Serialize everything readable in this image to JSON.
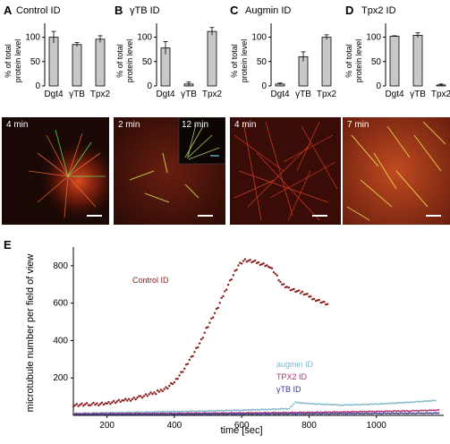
{
  "panels": [
    {
      "letter": "A",
      "title": "Control ID",
      "time": "4 min",
      "inset_time": ""
    },
    {
      "letter": "B",
      "title": "γTB ID",
      "time": "2 min",
      "inset_time": "12 min"
    },
    {
      "letter": "C",
      "title": "Augmin ID",
      "time": "4 min",
      "inset_time": ""
    },
    {
      "letter": "D",
      "title": "Tpx2 ID",
      "time": "7 min",
      "inset_time": ""
    }
  ],
  "panel_e_letter": "E",
  "colors": {
    "bar": "#c8c8c8",
    "control": "#8b1a1a",
    "augmin": "#7fb8c8",
    "tpx2": "#b0307a",
    "gtb": "#3a3a8a"
  },
  "chart_data": [
    {
      "type": "bar",
      "ylabel": "% of total protein level",
      "yticks": [
        0,
        50,
        100
      ],
      "ylim": [
        0,
        125
      ],
      "categories": [
        "Dgt4",
        "γTB",
        "Tpx2"
      ],
      "values": [
        100,
        85,
        96
      ],
      "errors": [
        12,
        4,
        7
      ]
    },
    {
      "type": "bar",
      "ylabel": "% of total protein level",
      "yticks": [
        0,
        50,
        100
      ],
      "ylim": [
        0,
        125
      ],
      "categories": [
        "Dgt4",
        "γTB",
        "Tpx2"
      ],
      "values": [
        78,
        4,
        112
      ],
      "errors": [
        13,
        4,
        8
      ]
    },
    {
      "type": "bar",
      "ylabel": "% of total protein level",
      "yticks": [
        0,
        50,
        100
      ],
      "ylim": [
        0,
        125
      ],
      "categories": [
        "Dgt4",
        "γTB",
        "Tpx2"
      ],
      "values": [
        4,
        60,
        100
      ],
      "errors": [
        2,
        10,
        5
      ]
    },
    {
      "type": "bar",
      "ylabel": "% of total protein level",
      "yticks": [
        0,
        50,
        100
      ],
      "ylim": [
        0,
        125
      ],
      "categories": [
        "Dgt4",
        "γTB",
        "Tpx2"
      ],
      "values": [
        102,
        104,
        2
      ],
      "errors": [
        1,
        5,
        2
      ]
    },
    {
      "type": "scatter",
      "xlabel": "time [sec]",
      "ylabel": "microtubule number per field of view",
      "xlim": [
        100,
        1200
      ],
      "ylim": [
        0,
        900
      ],
      "xticks": [
        200,
        400,
        600,
        800,
        1000
      ],
      "yticks": [
        200,
        400,
        600,
        800
      ],
      "legend": [
        "augmin ID",
        "TPX2 ID",
        "γTB ID"
      ],
      "series": [
        {
          "name": "Control ID",
          "points": [
            [
              100,
              55
            ],
            [
              150,
              58
            ],
            [
              200,
              65
            ],
            [
              250,
              78
            ],
            [
              300,
              98
            ],
            [
              350,
              125
            ],
            [
              380,
              150
            ],
            [
              400,
              180
            ],
            [
              430,
              250
            ],
            [
              450,
              310
            ],
            [
              480,
              400
            ],
            [
              500,
              480
            ],
            [
              530,
              580
            ],
            [
              560,
              700
            ],
            [
              590,
              800
            ],
            [
              610,
              830
            ],
            [
              640,
              820
            ],
            [
              680,
              800
            ],
            [
              700,
              760
            ],
            [
              720,
              700
            ],
            [
              740,
              680
            ],
            [
              780,
              655
            ],
            [
              820,
              620
            ],
            [
              860,
              590
            ]
          ]
        },
        {
          "name": "augmin ID",
          "points": [
            [
              100,
              10
            ],
            [
              200,
              14
            ],
            [
              300,
              17
            ],
            [
              400,
              20
            ],
            [
              500,
              23
            ],
            [
              600,
              28
            ],
            [
              680,
              32
            ],
            [
              740,
              36
            ],
            [
              760,
              70
            ],
            [
              800,
              62
            ],
            [
              900,
              55
            ],
            [
              1000,
              60
            ],
            [
              1100,
              70
            ],
            [
              1180,
              80
            ]
          ]
        },
        {
          "name": "TPX2 ID",
          "points": [
            [
              100,
              8
            ],
            [
              300,
              10
            ],
            [
              500,
              12
            ],
            [
              700,
              14
            ],
            [
              900,
              18
            ],
            [
              1100,
              24
            ],
            [
              1190,
              28
            ]
          ]
        },
        {
          "name": "γTB ID",
          "points": [
            [
              100,
              5
            ],
            [
              400,
              6
            ],
            [
              700,
              8
            ],
            [
              1000,
              10
            ],
            [
              1190,
              12
            ]
          ]
        }
      ]
    }
  ]
}
